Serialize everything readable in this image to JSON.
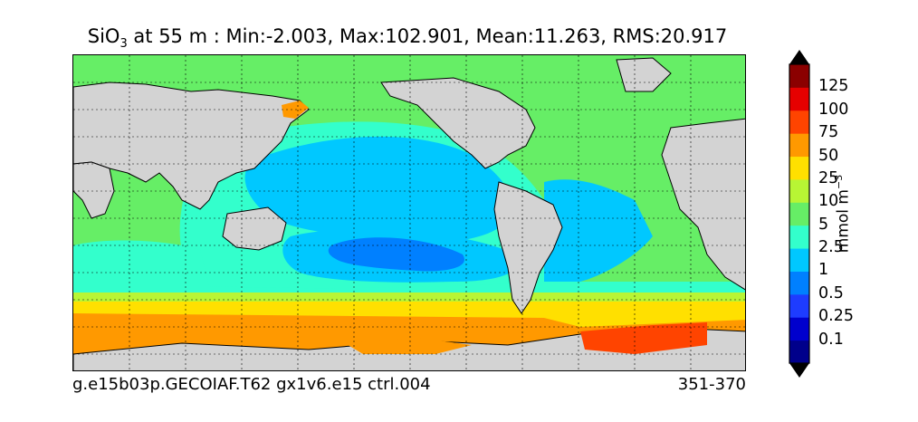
{
  "title": {
    "species": "SiO",
    "subscript": "3",
    "rest": " at 55 m : Min:-2.003, Max:102.901, Mean:11.263, RMS:20.917"
  },
  "footer": {
    "case_name": "g.e15b03p.GECOIAF.T62 gx1v6.e15 ctrl.004",
    "years": "351-370"
  },
  "colorbar": {
    "units_main": "mmol m",
    "units_exp": "−3",
    "levels": [
      "0.1",
      "0.25",
      "0.5",
      "1",
      "2.5",
      "5",
      "10",
      "25",
      "50",
      "75",
      "100",
      "125"
    ],
    "colors": [
      "#00008b",
      "#0000cd",
      "#1e3cff",
      "#0080ff",
      "#00c8ff",
      "#33ffcc",
      "#66ee66",
      "#b8f534",
      "#ffe000",
      "#ff9900",
      "#ff4400",
      "#e60000",
      "#8b0000"
    ],
    "extend": "both"
  },
  "map": {
    "projection": "cylindrical, Pacific-centered",
    "land_color": "#d3d3d3",
    "grid": "dashed"
  }
}
